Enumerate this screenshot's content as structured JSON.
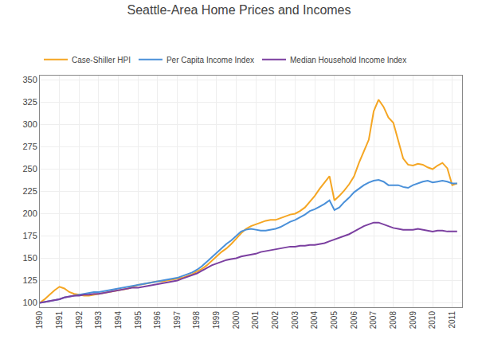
{
  "chart_data": {
    "type": "line",
    "title": "Seattle-Area Home Prices and Incomes",
    "x": [
      1990,
      1990.25,
      1990.5,
      1990.75,
      1991,
      1991.25,
      1991.5,
      1991.75,
      1992,
      1992.25,
      1992.5,
      1992.75,
      1993,
      1993.25,
      1993.5,
      1993.75,
      1994,
      1994.25,
      1994.5,
      1994.75,
      1995,
      1995.25,
      1995.5,
      1995.75,
      1996,
      1996.25,
      1996.5,
      1996.75,
      1997,
      1997.25,
      1997.5,
      1997.75,
      1998,
      1998.25,
      1998.5,
      1998.75,
      1999,
      1999.25,
      1999.5,
      1999.75,
      2000,
      2000.25,
      2000.5,
      2000.75,
      2001,
      2001.25,
      2001.5,
      2001.75,
      2002,
      2002.25,
      2002.5,
      2002.75,
      2003,
      2003.25,
      2003.5,
      2003.75,
      2004,
      2004.25,
      2004.5,
      2004.75,
      2005,
      2005.25,
      2005.5,
      2005.75,
      2006,
      2006.25,
      2006.5,
      2006.75,
      2007,
      2007.25,
      2007.5,
      2007.75,
      2008,
      2008.25,
      2008.5,
      2008.75,
      2009,
      2009.25,
      2009.5,
      2009.75,
      2010,
      2010.25,
      2010.5,
      2010.75,
      2011,
      2011.25
    ],
    "series": [
      {
        "name": "Case-Shiller HPI",
        "color": "#f5a623",
        "values": [
          100,
          104,
          109,
          114,
          118,
          116,
          112,
          110,
          109,
          108,
          108,
          109,
          110,
          111,
          112,
          113,
          114,
          115,
          116,
          118,
          120,
          121,
          122,
          123,
          124,
          124,
          125,
          126,
          127,
          128,
          130,
          132,
          135,
          138,
          142,
          147,
          152,
          157,
          161,
          166,
          172,
          178,
          183,
          186,
          188,
          190,
          192,
          193,
          193,
          195,
          197,
          199,
          200,
          203,
          207,
          213,
          220,
          228,
          235,
          242,
          215,
          220,
          226,
          233,
          242,
          257,
          270,
          283,
          315,
          328,
          320,
          308,
          302,
          282,
          262,
          255,
          254,
          256,
          255,
          252,
          250,
          254,
          257,
          251,
          232,
          234
        ]
      },
      {
        "name": "Per Capita Income Index",
        "color": "#4a90d9",
        "values": [
          100,
          101,
          102,
          103,
          104,
          106,
          107,
          108,
          109,
          110,
          111,
          112,
          112,
          113,
          114,
          115,
          116,
          117,
          118,
          119,
          120,
          121,
          122,
          123,
          124,
          125,
          126,
          127,
          128,
          130,
          132,
          134,
          137,
          141,
          146,
          151,
          156,
          161,
          166,
          170,
          175,
          180,
          182,
          183,
          182,
          181,
          181,
          182,
          183,
          185,
          188,
          191,
          193,
          196,
          199,
          203,
          205,
          208,
          211,
          215,
          204,
          207,
          213,
          218,
          224,
          228,
          232,
          235,
          237,
          238,
          236,
          232,
          232,
          232,
          230,
          229,
          232,
          234,
          236,
          237,
          235,
          236,
          237,
          236,
          234,
          234
        ]
      },
      {
        "name": "Median Household Income Index",
        "color": "#7b3fa0",
        "values": [
          100,
          101,
          102,
          103,
          104,
          106,
          107,
          108,
          108,
          109,
          109,
          110,
          110,
          111,
          112,
          113,
          114,
          115,
          116,
          117,
          117,
          118,
          119,
          120,
          121,
          122,
          123,
          124,
          125,
          127,
          129,
          131,
          133,
          136,
          139,
          142,
          144,
          146,
          148,
          149,
          150,
          152,
          153,
          154,
          155,
          157,
          158,
          159,
          160,
          161,
          162,
          163,
          163,
          164,
          164,
          165,
          165,
          166,
          167,
          169,
          171,
          173,
          175,
          177,
          180,
          183,
          186,
          188,
          190,
          190,
          188,
          186,
          184,
          183,
          182,
          182,
          182,
          183,
          182,
          181,
          180,
          181,
          181,
          180,
          180,
          180
        ]
      }
    ],
    "xlim": [
      1990,
      2011.5
    ],
    "xticks": [
      1990,
      1991,
      1992,
      1993,
      1994,
      1995,
      1996,
      1997,
      1998,
      1999,
      2000,
      2001,
      2002,
      2003,
      2004,
      2005,
      2006,
      2007,
      2008,
      2009,
      2010,
      2011
    ],
    "ylim": [
      95,
      355
    ],
    "yticks": [
      100,
      125,
      150,
      175,
      200,
      225,
      250,
      275,
      300,
      325,
      350
    ],
    "grid": true,
    "legend": "upper left"
  }
}
